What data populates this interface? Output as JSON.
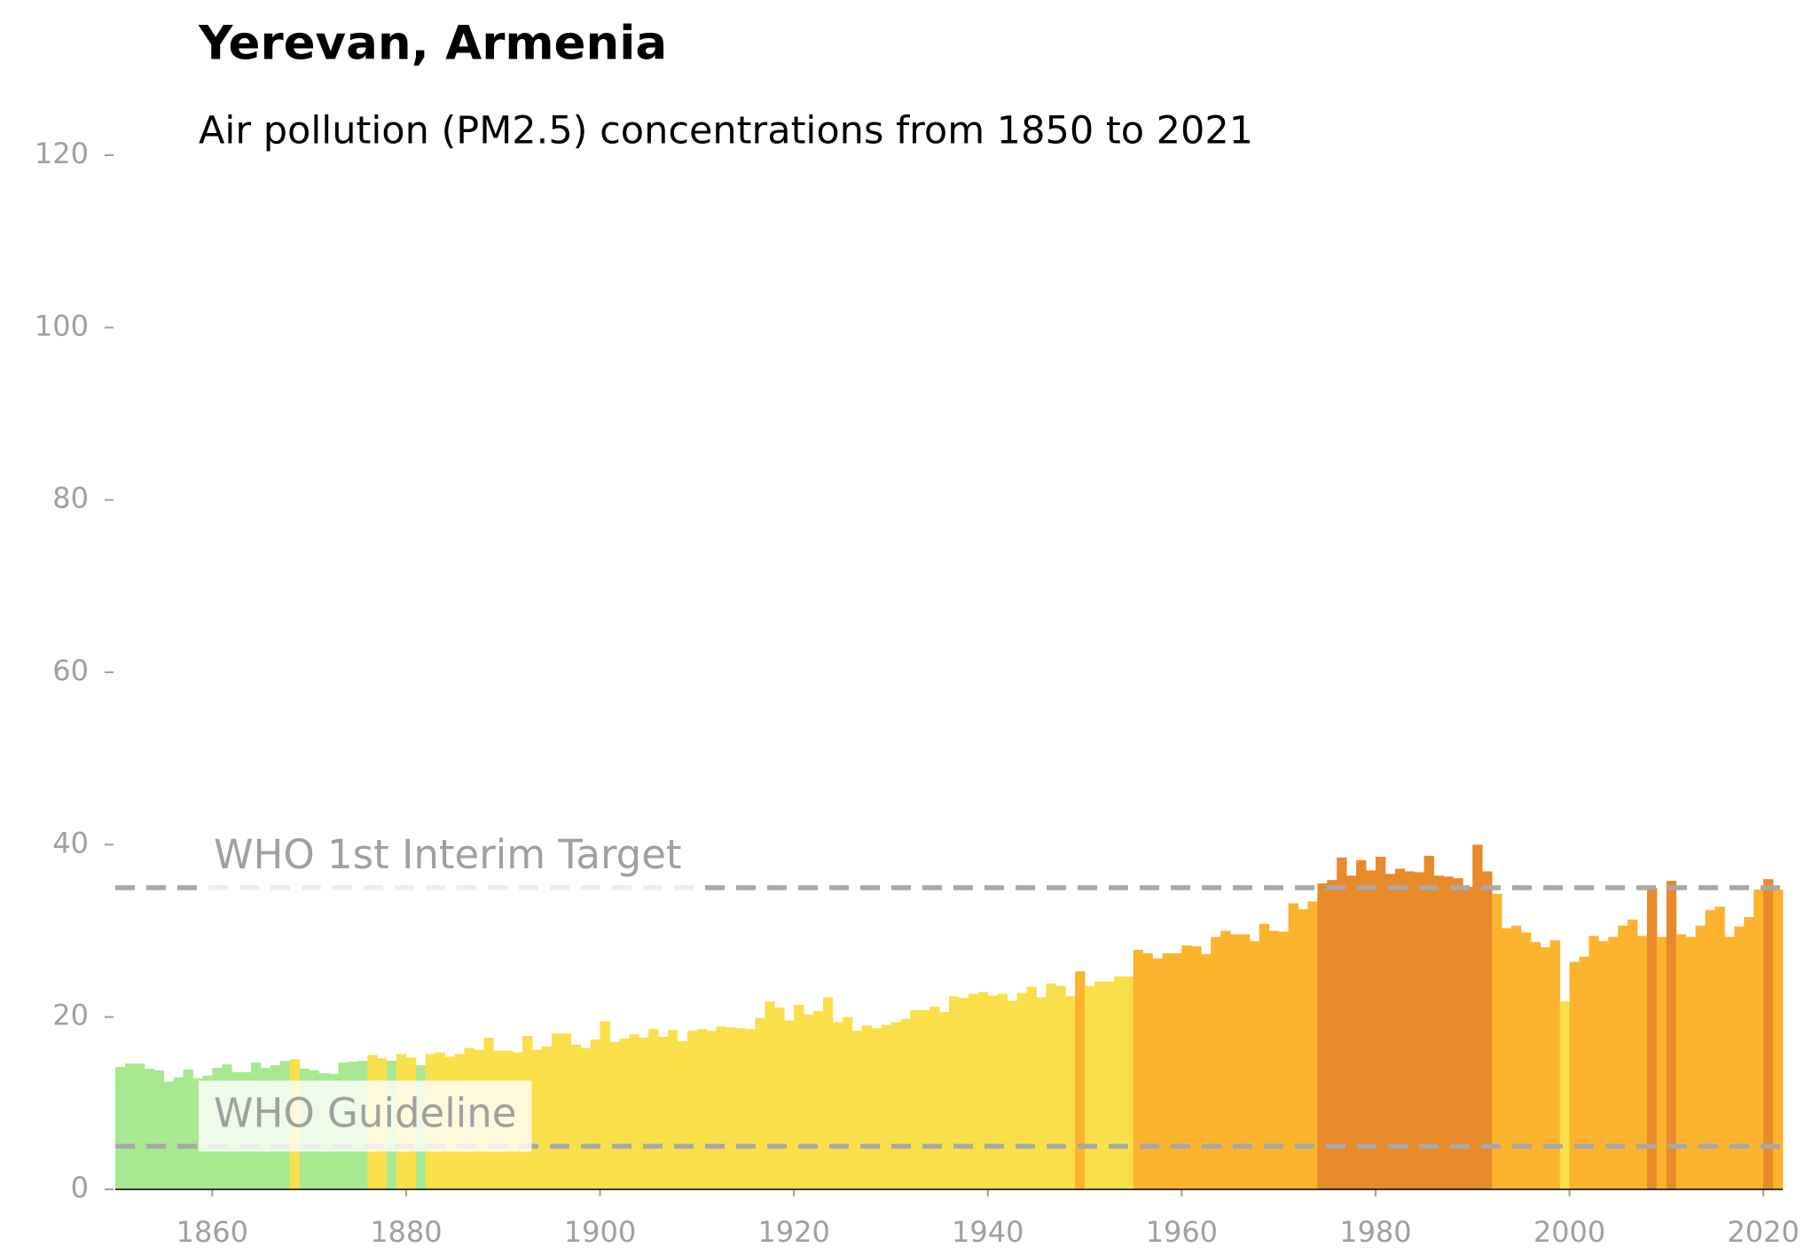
{
  "chart_data": {
    "type": "bar",
    "title": "Yerevan, Armenia",
    "subtitle": "Air pollution (PM2.5) concentrations from 1850 to 2021",
    "x": [
      1850,
      1851,
      1852,
      1853,
      1854,
      1855,
      1856,
      1857,
      1858,
      1859,
      1860,
      1861,
      1862,
      1863,
      1864,
      1865,
      1866,
      1867,
      1868,
      1869,
      1870,
      1871,
      1872,
      1873,
      1874,
      1875,
      1876,
      1877,
      1878,
      1879,
      1880,
      1881,
      1882,
      1883,
      1884,
      1885,
      1886,
      1887,
      1888,
      1889,
      1890,
      1891,
      1892,
      1893,
      1894,
      1895,
      1896,
      1897,
      1898,
      1899,
      1900,
      1901,
      1902,
      1903,
      1904,
      1905,
      1906,
      1907,
      1908,
      1909,
      1910,
      1911,
      1912,
      1913,
      1914,
      1915,
      1916,
      1917,
      1918,
      1919,
      1920,
      1921,
      1922,
      1923,
      1924,
      1925,
      1926,
      1927,
      1928,
      1929,
      1930,
      1931,
      1932,
      1933,
      1934,
      1935,
      1936,
      1937,
      1938,
      1939,
      1940,
      1941,
      1942,
      1943,
      1944,
      1945,
      1946,
      1947,
      1948,
      1949,
      1950,
      1951,
      1952,
      1953,
      1954,
      1955,
      1956,
      1957,
      1958,
      1959,
      1960,
      1961,
      1962,
      1963,
      1964,
      1965,
      1966,
      1967,
      1968,
      1969,
      1970,
      1971,
      1972,
      1973,
      1974,
      1975,
      1976,
      1977,
      1978,
      1979,
      1980,
      1981,
      1982,
      1983,
      1984,
      1985,
      1986,
      1987,
      1988,
      1989,
      1990,
      1991,
      1992,
      1993,
      1994,
      1995,
      1996,
      1997,
      1998,
      1999,
      2000,
      2001,
      2002,
      2003,
      2004,
      2005,
      2006,
      2007,
      2008,
      2009,
      2010,
      2011,
      2012,
      2013,
      2014,
      2015,
      2016,
      2017,
      2018,
      2019,
      2020,
      2021
    ],
    "values": [
      14.2,
      14.6,
      14.6,
      14.0,
      13.8,
      12.5,
      13.0,
      13.9,
      12.9,
      13.2,
      14.1,
      14.5,
      13.6,
      13.6,
      14.7,
      14.1,
      14.4,
      14.9,
      15.1,
      14.0,
      13.8,
      13.5,
      13.4,
      14.7,
      14.8,
      14.9,
      15.6,
      15.2,
      14.9,
      15.7,
      15.3,
      14.4,
      15.7,
      15.9,
      15.4,
      15.7,
      16.4,
      16.2,
      17.6,
      16.1,
      16.1,
      15.9,
      17.8,
      16.2,
      16.6,
      18.1,
      18.1,
      16.8,
      16.4,
      17.4,
      19.5,
      17.1,
      17.5,
      18.0,
      17.6,
      18.6,
      17.7,
      18.5,
      17.2,
      18.4,
      18.6,
      18.4,
      18.9,
      18.8,
      18.7,
      18.6,
      19.9,
      21.8,
      21.1,
      19.6,
      21.4,
      20.3,
      20.7,
      22.3,
      19.4,
      20.0,
      18.4,
      19.0,
      18.7,
      19.1,
      19.4,
      19.8,
      20.8,
      20.8,
      21.2,
      20.6,
      22.4,
      22.2,
      22.7,
      22.9,
      22.5,
      22.7,
      21.9,
      22.8,
      23.5,
      22.3,
      23.9,
      23.6,
      22.4,
      25.3,
      23.6,
      24.1,
      24.1,
      24.7,
      24.7,
      27.8,
      27.4,
      26.8,
      27.4,
      27.4,
      28.3,
      28.2,
      27.3,
      29.3,
      30.0,
      29.6,
      29.6,
      28.8,
      30.8,
      30.0,
      29.9,
      33.2,
      32.5,
      33.4,
      35.5,
      35.9,
      38.5,
      36.4,
      38.2,
      37.0,
      38.6,
      36.6,
      37.2,
      36.9,
      36.8,
      38.7,
      36.4,
      36.3,
      36.1,
      35.1,
      40.0,
      36.9,
      34.3,
      30.3,
      30.6,
      29.8,
      28.7,
      28.1,
      28.9,
      21.8,
      26.4,
      27.0,
      29.4,
      28.8,
      29.3,
      30.6,
      31.3,
      29.4,
      35.0,
      29.3,
      35.8,
      29.6,
      29.3,
      30.6,
      32.4,
      32.8,
      29.3,
      30.5,
      31.6,
      34.8,
      36.0,
      34.8
    ],
    "colors": [
      "#a8e890",
      "#a8e890",
      "#a8e890",
      "#a8e890",
      "#a8e890",
      "#a8e890",
      "#a8e890",
      "#a8e890",
      "#a8e890",
      "#a8e890",
      "#a8e890",
      "#a8e890",
      "#a8e890",
      "#a8e890",
      "#a8e890",
      "#a8e890",
      "#a8e890",
      "#a8e890",
      "#f9e04b",
      "#a8e890",
      "#a8e890",
      "#a8e890",
      "#a8e890",
      "#a8e890",
      "#a8e890",
      "#a8e890",
      "#f9e04b",
      "#f9e04b",
      "#a8e890",
      "#f9e04b",
      "#f9e04b",
      "#a8e890",
      "#f9e04b",
      "#f9e04b",
      "#f9e04b",
      "#f9e04b",
      "#f9e04b",
      "#f9e04b",
      "#f9e04b",
      "#f9e04b",
      "#f9e04b",
      "#f9e04b",
      "#f9e04b",
      "#f9e04b",
      "#f9e04b",
      "#f9e04b",
      "#f9e04b",
      "#f9e04b",
      "#f9e04b",
      "#f9e04b",
      "#f9e04b",
      "#f9e04b",
      "#f9e04b",
      "#f9e04b",
      "#f9e04b",
      "#f9e04b",
      "#f9e04b",
      "#f9e04b",
      "#f9e04b",
      "#f9e04b",
      "#f9e04b",
      "#f9e04b",
      "#f9e04b",
      "#f9e04b",
      "#f9e04b",
      "#f9e04b",
      "#f9e04b",
      "#f9e04b",
      "#f9e04b",
      "#f9e04b",
      "#f9e04b",
      "#f9e04b",
      "#f9e04b",
      "#f9e04b",
      "#f9e04b",
      "#f9e04b",
      "#f9e04b",
      "#f9e04b",
      "#f9e04b",
      "#f9e04b",
      "#f9e04b",
      "#f9e04b",
      "#f9e04b",
      "#f9e04b",
      "#f9e04b",
      "#f9e04b",
      "#f9e04b",
      "#f9e04b",
      "#f9e04b",
      "#f9e04b",
      "#f9e04b",
      "#f9e04b",
      "#f9e04b",
      "#f9e04b",
      "#f9e04b",
      "#f9e04b",
      "#f9e04b",
      "#f9e04b",
      "#f9e04b",
      "#fcb32d",
      "#f9e04b",
      "#f9e04b",
      "#f9e04b",
      "#f9e04b",
      "#f9e04b",
      "#fcb32d",
      "#fcb32d",
      "#fcb32d",
      "#fcb32d",
      "#fcb32d",
      "#fcb32d",
      "#fcb32d",
      "#fcb32d",
      "#fcb32d",
      "#fcb32d",
      "#fcb32d",
      "#fcb32d",
      "#fcb32d",
      "#fcb32d",
      "#fcb32d",
      "#fcb32d",
      "#fcb32d",
      "#fcb32d",
      "#fcb32d",
      "#e8892a",
      "#e8892a",
      "#e8892a",
      "#e8892a",
      "#e8892a",
      "#e8892a",
      "#e8892a",
      "#e8892a",
      "#e8892a",
      "#e8892a",
      "#e8892a",
      "#e8892a",
      "#e8892a",
      "#e8892a",
      "#e8892a",
      "#e8892a",
      "#e8892a",
      "#e8892a",
      "#fcb32d",
      "#fcb32d",
      "#fcb32d",
      "#fcb32d",
      "#fcb32d",
      "#fcb32d",
      "#fcb32d",
      "#f9e04b",
      "#fcb32d",
      "#fcb32d",
      "#fcb32d",
      "#fcb32d",
      "#fcb32d",
      "#fcb32d",
      "#fcb32d",
      "#fcb32d",
      "#e8892a",
      "#fcb32d",
      "#e8892a",
      "#fcb32d",
      "#fcb32d",
      "#fcb32d",
      "#fcb32d",
      "#fcb32d",
      "#fcb32d",
      "#fcb32d",
      "#fcb32d",
      "#fcb32d",
      "#e8892a",
      "#fcb32d"
    ],
    "xlim": [
      1850,
      2022
    ],
    "xticks": [
      1860,
      1880,
      1900,
      1920,
      1940,
      1960,
      1980,
      2000,
      2020
    ],
    "ylim": [
      0,
      120
    ],
    "yticks": [
      0,
      20,
      40,
      60,
      80,
      100,
      120
    ],
    "reference_lines": [
      {
        "label": "WHO 1st Interim Target",
        "value": 35
      },
      {
        "label": "WHO Guideline",
        "value": 5
      }
    ]
  }
}
